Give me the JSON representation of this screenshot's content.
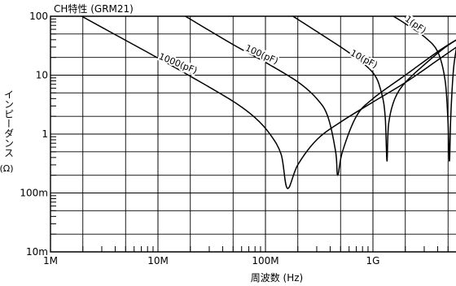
{
  "chart_data": {
    "type": "line",
    "title": "CH特性 (GRM21)",
    "xlabel": "周波数 (Hz)",
    "ylabel": "インピーダンス",
    "ylabel_unit": "(Ω)",
    "x_scale": "log",
    "y_scale": "log",
    "xlim": [
      1000000,
      6000000000
    ],
    "ylim": [
      0.01,
      100
    ],
    "x_ticks": [
      {
        "value": 1000000,
        "label": "1M"
      },
      {
        "value": 10000000,
        "label": "10M"
      },
      {
        "value": 100000000,
        "label": "100M"
      },
      {
        "value": 1000000000,
        "label": "1G"
      }
    ],
    "y_ticks": [
      {
        "value": 100,
        "label": "100"
      },
      {
        "value": 10,
        "label": "10"
      },
      {
        "value": 1,
        "label": "1"
      },
      {
        "value": 0.1,
        "label": "100m"
      },
      {
        "value": 0.01,
        "label": "10m"
      }
    ],
    "grid": true,
    "series": [
      {
        "name": "1000(pF)",
        "x": [
          1950000,
          5000000,
          10000000,
          20000000,
          50000000,
          80000000,
          110000000,
          140000000,
          160000000,
          200000000,
          300000000,
          500000000,
          1000000000,
          2000000000,
          4000000000,
          6000000000
        ],
        "y": [
          100,
          39,
          19.5,
          9.6,
          3.6,
          1.9,
          1.0,
          0.45,
          0.12,
          0.3,
          0.8,
          1.6,
          3.5,
          7.5,
          18,
          30
        ]
      },
      {
        "name": "100(pF)",
        "x": [
          18000000,
          50000000,
          100000000,
          200000000,
          300000000,
          380000000,
          450000000,
          470000000,
          520000000,
          700000000,
          1000000000,
          2000000000,
          4000000000,
          6000000000
        ],
        "y": [
          100,
          33,
          16.5,
          7.7,
          4.0,
          2.0,
          0.5,
          0.2,
          0.5,
          2.0,
          4.0,
          10,
          25,
          40
        ]
      },
      {
        "name": "10(pF)",
        "x": [
          180000000,
          300000000,
          600000000,
          1000000000,
          1200000000,
          1300000000,
          1350000000,
          1400000000,
          1600000000,
          2000000000,
          3000000000,
          4500000000,
          6000000000
        ],
        "y": [
          100,
          55,
          24,
          11,
          5.0,
          2.0,
          0.35,
          1.5,
          4.0,
          7.5,
          15,
          28,
          40
        ]
      },
      {
        "name": "1(pF)",
        "x": [
          1550000000,
          2000000000,
          3000000000,
          4000000000,
          4700000000,
          5000000000,
          5150000000,
          5300000000,
          5600000000,
          6000000000
        ],
        "y": [
          100,
          75,
          45,
          25,
          8.0,
          1.5,
          0.35,
          2.0,
          12,
          30
        ]
      }
    ]
  }
}
